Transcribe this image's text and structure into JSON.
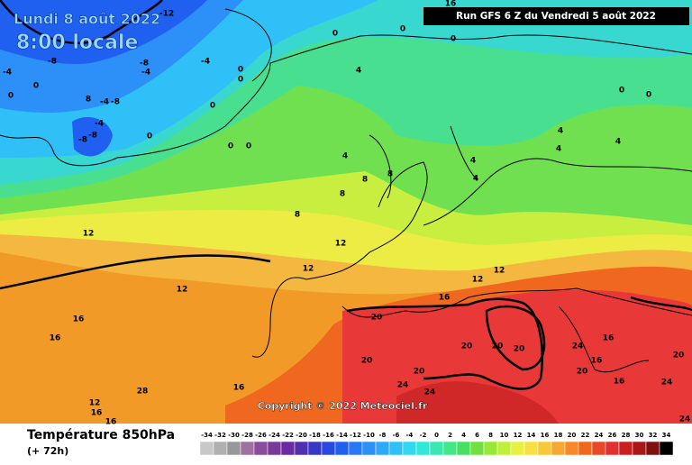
{
  "header": {
    "date": "Lundi 8 août 2022",
    "time": "8:00 locale",
    "run": "Run GFS 6 Z du Vendredi 5 août 2022"
  },
  "footer": {
    "title": "Température 850hPa",
    "lead": "(+ 72h)",
    "copyright": "Copyright © 2022 Meteociel.fr"
  },
  "legend": {
    "ticks": [
      -34,
      -32,
      -30,
      -28,
      -26,
      -24,
      -22,
      -20,
      -18,
      -16,
      -14,
      -12,
      -10,
      -8,
      -6,
      -4,
      -2,
      0,
      2,
      4,
      6,
      8,
      10,
      12,
      14,
      16,
      18,
      20,
      22,
      24,
      26,
      28,
      30,
      32,
      34
    ],
    "colors": [
      "#c8c8c8",
      "#b0b0b0",
      "#989898",
      "#a070a0",
      "#8c4c9c",
      "#7a3a9a",
      "#6a2aa0",
      "#5030b0",
      "#3838c8",
      "#2848e0",
      "#2060f0",
      "#2878f8",
      "#2c90f8",
      "#30a8f8",
      "#30c0f8",
      "#30d8f0",
      "#30e8d8",
      "#38e8b0",
      "#40e888",
      "#48e060",
      "#70e040",
      "#98e838",
      "#c0f038",
      "#e8f040",
      "#f8e040",
      "#f8c838",
      "#f8a830",
      "#f88828",
      "#f06820",
      "#e84828",
      "#e03030",
      "#c82020",
      "#a81818",
      "#801010",
      "#000000"
    ]
  },
  "map": {
    "isotherm_labels": [
      -12,
      0,
      0,
      0,
      -8,
      -4,
      -8,
      -4,
      0,
      0,
      4,
      -4,
      0,
      0,
      8,
      -4,
      -8,
      0,
      -4,
      -8,
      -8,
      0,
      0,
      0,
      4,
      4,
      4,
      4,
      4,
      8,
      8,
      8,
      8,
      12,
      12,
      12,
      12,
      12,
      12,
      16,
      16,
      16,
      20,
      20,
      20,
      20,
      20,
      20,
      24,
      24,
      24,
      16,
      16,
      20,
      16,
      20,
      24,
      24,
      28,
      16,
      12,
      16,
      16,
      16,
      0,
      0,
      4
    ]
  }
}
